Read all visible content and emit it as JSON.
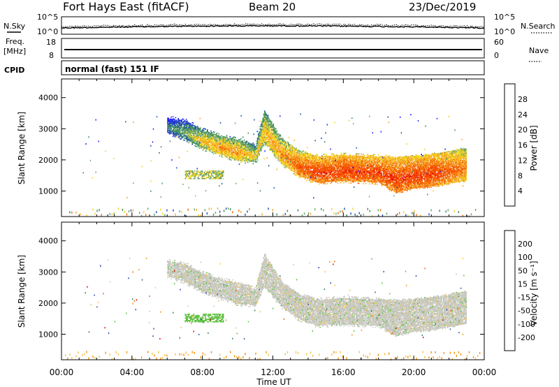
{
  "header": {
    "station": "Fort Hays East (fitACF)",
    "beam": "Beam 20",
    "date": "23/Dec/2019"
  },
  "top_panels": {
    "nsky_label": "N.Sky",
    "nsearch_label": "N.Search",
    "noise_ticks": [
      "10^5",
      "10^0"
    ],
    "freq_label": "Freq.",
    "freq_unit": "[MHz]",
    "freq_ticks": [
      "18",
      "8"
    ],
    "nave_label": "Nave",
    "nave_ticks": [
      "60",
      "0"
    ],
    "cpid_label": "CPID",
    "cpid_value": "normal (fast) 151 IF"
  },
  "colors": {
    "power": [
      "#1a1aff",
      "#1f4fa8",
      "#3b8a5a",
      "#6aa66a",
      "#f2d21c",
      "#f5a623",
      "#f56a00",
      "#f53b00",
      "#e30000"
    ],
    "velocity": [
      "#1f3fb0",
      "#2c5c9e",
      "#2e7d5a",
      "#5cbf3c",
      "#c8c8c0",
      "#f5c242",
      "#f5900a",
      "#f55a00",
      "#e00000"
    ]
  },
  "chart_data": [
    {
      "type": "heatmap",
      "name": "power",
      "xlabel": "Time UT",
      "ylabel": "Slant Range [km]",
      "xlim": [
        0,
        24
      ],
      "ylim": [
        180,
        4600
      ],
      "xticks": [
        "00:00",
        "04:00",
        "08:00",
        "12:00",
        "16:00",
        "20:00",
        "00:00"
      ],
      "yticks": [
        1000,
        2000,
        3000,
        4000
      ],
      "colorbar": {
        "label": "Power [dB]",
        "ticks": [
          4,
          8,
          12,
          16,
          20,
          24,
          28
        ],
        "range": [
          0,
          32
        ]
      },
      "echo_band": {
        "time_h": [
          6.0,
          7.0,
          8.0,
          9.0,
          10.0,
          11.0,
          11.5,
          12.5,
          13.5,
          14.5,
          16.0,
          18.0,
          19.0,
          20.0,
          21.0,
          22.0,
          23.0
        ],
        "upper_km": [
          3300,
          3200,
          2900,
          2700,
          2600,
          2400,
          3500,
          2600,
          2200,
          2050,
          2100,
          2050,
          2000,
          2050,
          2100,
          2200,
          2300
        ],
        "lower_km": [
          2900,
          2700,
          2400,
          2200,
          2000,
          1950,
          2600,
          1900,
          1500,
          1300,
          1350,
          1300,
          1000,
          1150,
          1200,
          1300,
          1400
        ],
        "peak_power_db": [
          12,
          16,
          22,
          24,
          24,
          20,
          22,
          24,
          28,
          30,
          30,
          30,
          30,
          30,
          30,
          28,
          26
        ]
      }
    },
    {
      "type": "heatmap",
      "name": "velocity",
      "xlabel": "Time UT",
      "ylabel": "Slant Range [km]",
      "xlim": [
        0,
        24
      ],
      "ylim": [
        180,
        4600
      ],
      "xticks": [
        "00:00",
        "04:00",
        "08:00",
        "12:00",
        "16:00",
        "20:00",
        "00:00"
      ],
      "yticks": [
        1000,
        2000,
        3000,
        4000
      ],
      "colorbar": {
        "label": "Velocity [m s⁻¹]",
        "ticks": [
          200,
          100,
          50,
          15,
          -15,
          -50,
          -100,
          -200
        ]
      },
      "dominant_velocity": "-15 to 15"
    }
  ]
}
